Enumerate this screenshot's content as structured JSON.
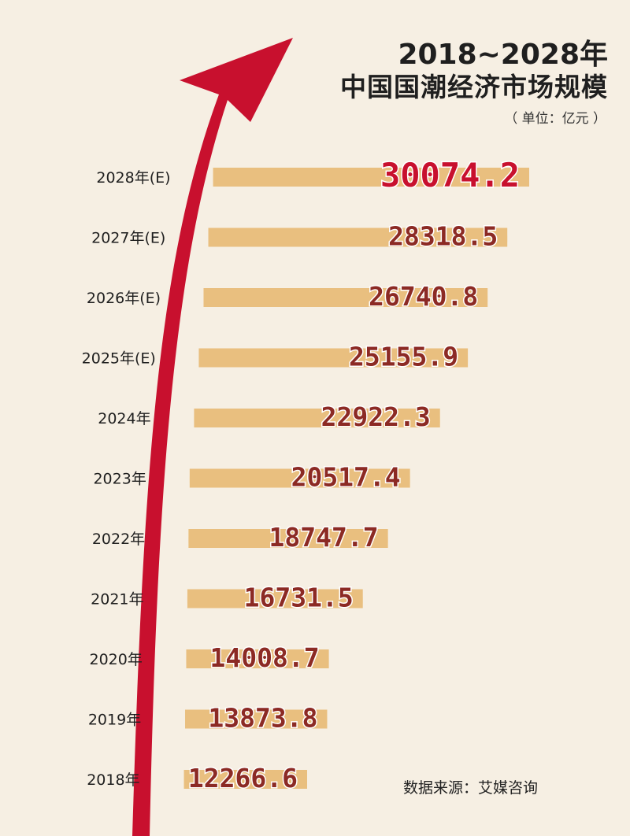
{
  "title_line1": "2018~2028年",
  "title_line2": "中国国潮经济市场规模",
  "unit_note": "（ 单位：亿元 ）",
  "source_note": "数据来源：艾媒咨询",
  "colors": {
    "background": "#f6efe3",
    "bar": "#e9bf7f",
    "bar_shadow": "#f6dfbd",
    "value_text": "#8c2a24",
    "highlight_value": "#c8102e",
    "arrow": "#c8102e"
  },
  "chart_data": {
    "type": "bar",
    "orientation": "horizontal",
    "title": "2018~2028年 中国国潮经济市场规模",
    "unit": "亿元",
    "categories": [
      "2028年(E)",
      "2027年(E)",
      "2026年(E)",
      "2025年(E)",
      "2024年",
      "2023年",
      "2022年",
      "2021年",
      "2020年",
      "2019年",
      "2018年"
    ],
    "values": [
      30074.2,
      28318.5,
      26740.8,
      25155.9,
      22922.3,
      20517.4,
      18747.7,
      16731.5,
      14008.7,
      13873.8,
      12266.6
    ],
    "value_labels": [
      "30074.2",
      "28318.5",
      "26740.8",
      "25155.9",
      "22922.3",
      "20517.4",
      "18747.7",
      "16731.5",
      "14008.7",
      "13873.8",
      "12266.6"
    ],
    "source": "艾媒咨询"
  }
}
